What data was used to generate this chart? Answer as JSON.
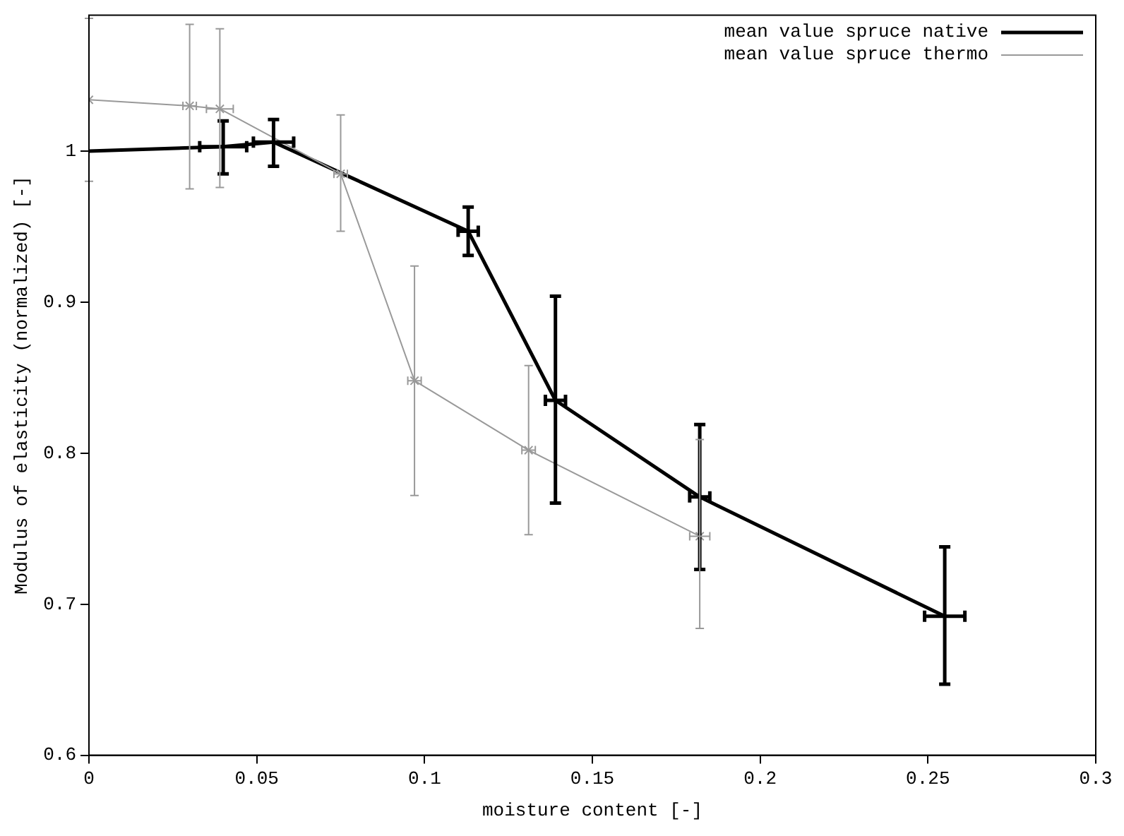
{
  "chart_data": {
    "type": "line",
    "xlabel": "moisture content [-]",
    "ylabel": "Modulus of elasticity (normalized) [-]",
    "xlim": [
      0,
      0.3
    ],
    "xticks": [
      0,
      0.05,
      0.1,
      0.15,
      0.2,
      0.25,
      0.3
    ],
    "ylim": [
      0.6,
      1.09
    ],
    "yticks": [
      0.6,
      0.7,
      0.8,
      0.9,
      1
    ],
    "grid": false,
    "legend": "top right",
    "series": [
      {
        "name": "mean value spruce native",
        "color": "#000000",
        "marker": "none",
        "x": [
          0,
          0.04,
          0.055,
          0.113,
          0.139,
          0.182,
          0.255
        ],
        "values": [
          1.0,
          1.003,
          1.006,
          0.947,
          0.835,
          0.771,
          0.692
        ],
        "errors": [
          null,
          [
            0.985,
            1.02
          ],
          [
            0.99,
            1.021
          ],
          [
            0.931,
            0.963
          ],
          [
            0.767,
            0.904
          ],
          [
            0.723,
            0.819
          ],
          [
            0.647,
            0.738
          ]
        ],
        "xerrors": [
          null,
          0.007,
          0.006,
          0.003,
          0.003,
          0.003,
          0.006
        ]
      },
      {
        "name": "mean value spruce thermo",
        "color": "#999999",
        "marker": "cross",
        "x": [
          0,
          0.03,
          0.039,
          0.075,
          0.097,
          0.131,
          0.182
        ],
        "values": [
          1.034,
          1.03,
          1.028,
          0.985,
          0.848,
          0.802,
          0.745
        ],
        "errors": [
          [
            0.98,
            1.088
          ],
          [
            0.975,
            1.084
          ],
          [
            0.976,
            1.081
          ],
          [
            0.947,
            1.024
          ],
          [
            0.772,
            0.924
          ],
          [
            0.746,
            0.858
          ],
          [
            0.684,
            0.809
          ]
        ],
        "xerrors": [
          null,
          0.002,
          0.004,
          0.002,
          0.002,
          0.002,
          0.003
        ]
      }
    ]
  }
}
